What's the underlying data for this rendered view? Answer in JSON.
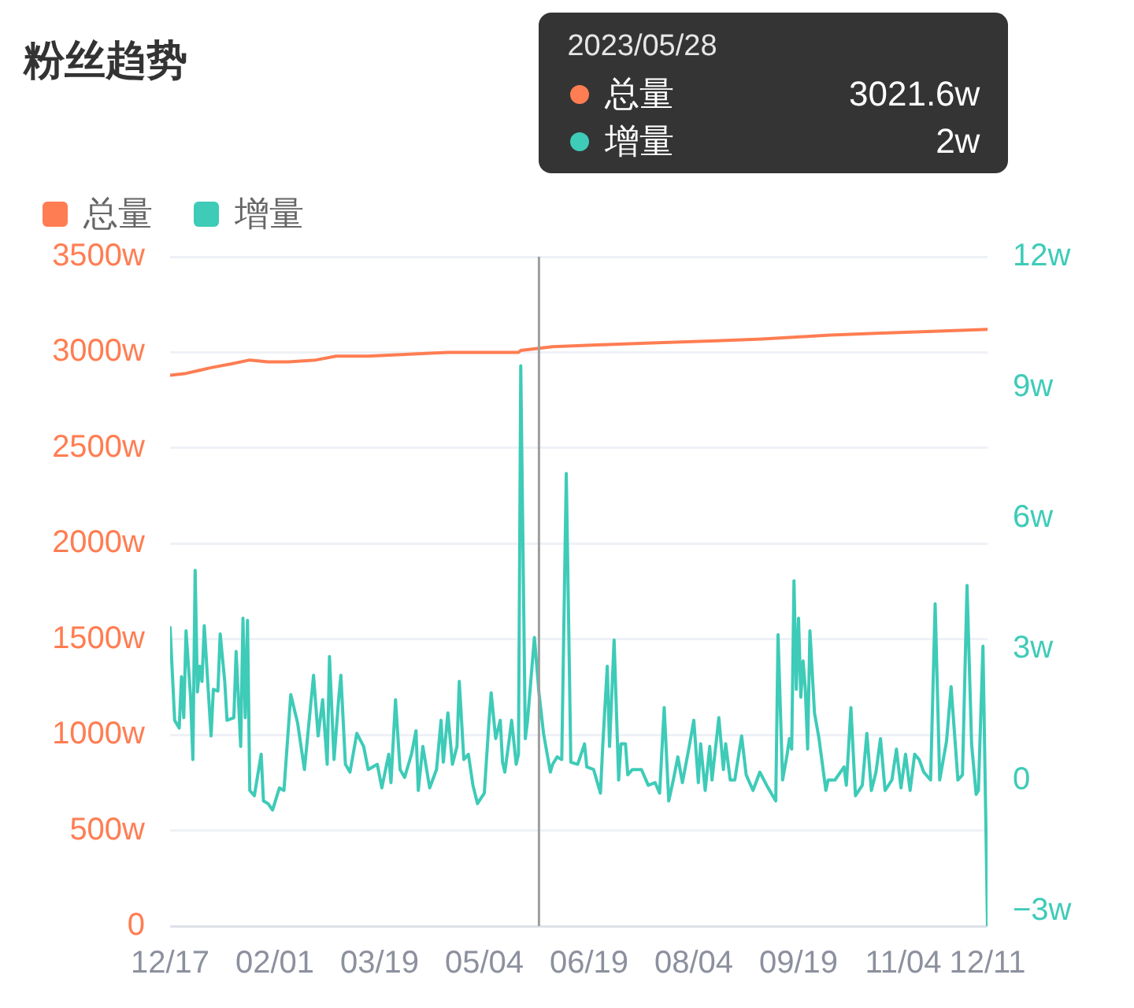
{
  "chart_data": {
    "type": "line",
    "title": "粉丝趋势",
    "xlim": [
      "2022-12-17",
      "2023-12-11"
    ],
    "xticks": [
      {
        "value": "2022-12-17",
        "label": "12/17"
      },
      {
        "value": "2023-02-01",
        "label": "02/01"
      },
      {
        "value": "2023-03-19",
        "label": "03/19"
      },
      {
        "value": "2023-05-04",
        "label": "05/04"
      },
      {
        "value": "2023-06-19",
        "label": "06/19"
      },
      {
        "value": "2023-08-04",
        "label": "08/04"
      },
      {
        "value": "2023-09-19",
        "label": "09/19"
      },
      {
        "value": "2023-11-04",
        "label": "11/04"
      },
      {
        "value": "2023-12-11",
        "label": "12/11"
      }
    ],
    "ylim": [
      0,
      3500
    ],
    "yticks": [
      0,
      {
        "value": 500,
        "label": "500w"
      },
      {
        "value": 1000,
        "label": "1000w"
      },
      {
        "value": 1500,
        "label": "1500w"
      },
      {
        "value": 2000,
        "label": "2000w"
      },
      {
        "value": 2500,
        "label": "2500w"
      },
      {
        "value": 3000,
        "label": "3000w"
      },
      {
        "value": 3500,
        "label": "3500w"
      }
    ],
    "y2lim": [
      -3.35,
      12
    ],
    "y2ticks": [
      {
        "value": -3,
        "label": "−3w"
      },
      0,
      {
        "value": 3,
        "label": "3w"
      },
      {
        "value": 6,
        "label": "6w"
      },
      {
        "value": 9,
        "label": "9w"
      },
      {
        "value": 12,
        "label": "12w"
      }
    ],
    "series": [
      {
        "name": "总量",
        "color": "#ff7d52",
        "x": [
          "2022-12-17",
          "2022-12-24",
          "2023-01-04",
          "2023-01-13",
          "2023-01-21",
          "2023-01-29",
          "2023-02-07",
          "2023-02-19",
          "2023-02-28",
          "2023-03-14",
          "2023-04-01",
          "2023-04-18",
          "2023-05-06",
          "2023-05-19",
          "2023-05-20",
          "2023-05-28",
          "2023-06-03",
          "2023-06-25",
          "2023-07-19",
          "2023-08-14",
          "2023-09-03",
          "2023-09-18",
          "2023-10-03",
          "2023-10-23",
          "2023-11-17",
          "2023-12-11"
        ],
        "values": [
          2880,
          2890,
          2920,
          2940,
          2960,
          2950,
          2950,
          2960,
          2980,
          2980,
          2990,
          3000,
          3000,
          3000,
          3010,
          3021.6,
          3030,
          3040,
          3050,
          3060,
          3070,
          3080,
          3090,
          3100,
          3110,
          3120
        ]
      },
      {
        "name": "增量",
        "color": "#3ecbb8",
        "axis": "y2",
        "x": [
          "2022-12-17",
          "2022-12-19",
          "2022-12-21",
          "2022-12-22",
          "2022-12-23",
          "2022-12-24",
          "2022-12-26",
          "2022-12-27",
          "2022-12-28",
          "2022-12-29",
          "2022-12-30",
          "2022-12-31",
          "2023-01-01",
          "2023-01-04",
          "2023-01-05",
          "2023-01-07",
          "2023-01-08",
          "2023-01-10",
          "2023-01-11",
          "2023-01-14",
          "2023-01-15",
          "2023-01-17",
          "2023-01-18",
          "2023-01-19",
          "2023-01-20",
          "2023-01-21",
          "2023-01-23",
          "2023-01-26",
          "2023-01-27",
          "2023-01-29",
          "2023-01-31",
          "2023-02-03",
          "2023-02-05",
          "2023-02-08",
          "2023-02-11",
          "2023-02-14",
          "2023-02-18",
          "2023-02-20",
          "2023-02-22",
          "2023-02-24",
          "2023-02-25",
          "2023-02-27",
          "2023-03-01",
          "2023-03-02",
          "2023-03-04",
          "2023-03-06",
          "2023-03-09",
          "2023-03-12",
          "2023-03-14",
          "2023-03-18",
          "2023-03-20",
          "2023-03-23",
          "2023-03-24",
          "2023-03-26",
          "2023-03-28",
          "2023-03-30",
          "2023-04-02",
          "2023-04-04",
          "2023-04-05",
          "2023-04-07",
          "2023-04-10",
          "2023-04-13",
          "2023-04-15",
          "2023-04-16",
          "2023-04-18",
          "2023-04-20",
          "2023-04-22",
          "2023-04-23",
          "2023-04-25",
          "2023-04-27",
          "2023-04-29",
          "2023-05-01",
          "2023-05-04",
          "2023-05-06",
          "2023-05-07",
          "2023-05-09",
          "2023-05-11",
          "2023-05-12",
          "2023-05-13",
          "2023-05-15",
          "2023-05-16",
          "2023-05-18",
          "2023-05-19",
          "2023-05-20",
          "2023-05-22",
          "2023-05-23",
          "2023-05-26",
          "2023-05-28",
          "2023-05-30",
          "2023-06-02",
          "2023-06-03",
          "2023-06-05",
          "2023-06-07",
          "2023-06-09",
          "2023-06-11",
          "2023-06-14",
          "2023-06-17",
          "2023-06-18",
          "2023-06-21",
          "2023-06-24",
          "2023-06-25",
          "2023-06-27",
          "2023-06-28",
          "2023-06-30",
          "2023-07-02",
          "2023-07-03",
          "2023-07-05",
          "2023-07-06",
          "2023-07-08",
          "2023-07-12",
          "2023-07-15",
          "2023-07-18",
          "2023-07-20",
          "2023-07-22",
          "2023-07-24",
          "2023-07-26",
          "2023-07-28",
          "2023-07-30",
          "2023-08-02",
          "2023-08-04",
          "2023-08-06",
          "2023-08-07",
          "2023-08-09",
          "2023-08-11",
          "2023-08-12",
          "2023-08-15",
          "2023-08-17",
          "2023-08-18",
          "2023-08-20",
          "2023-08-22",
          "2023-08-25",
          "2023-08-27",
          "2023-08-30",
          "2023-09-02",
          "2023-09-05",
          "2023-09-09",
          "2023-09-10",
          "2023-09-12",
          "2023-09-14",
          "2023-09-15",
          "2023-09-16",
          "2023-09-17",
          "2023-09-18",
          "2023-09-19",
          "2023-09-20",
          "2023-09-21",
          "2023-09-22",
          "2023-09-23",
          "2023-09-24",
          "2023-09-26",
          "2023-09-28",
          "2023-10-01",
          "2023-10-02",
          "2023-10-05",
          "2023-10-09",
          "2023-10-10",
          "2023-10-12",
          "2023-10-14",
          "2023-10-17",
          "2023-10-19",
          "2023-10-21",
          "2023-10-23",
          "2023-10-25",
          "2023-10-27",
          "2023-10-30",
          "2023-11-01",
          "2023-11-03",
          "2023-11-05",
          "2023-11-07",
          "2023-11-09",
          "2023-11-11",
          "2023-11-13",
          "2023-11-16",
          "2023-11-18",
          "2023-11-20",
          "2023-11-23",
          "2023-11-25",
          "2023-11-28",
          "2023-11-30",
          "2023-12-02",
          "2023-12-04",
          "2023-12-06",
          "2023-12-07",
          "2023-12-09",
          "2023-12-11"
        ],
        "values": [
          3.5,
          1.37,
          1.19,
          2.37,
          1.43,
          3.42,
          1.9,
          0.47,
          4.81,
          2.02,
          2.61,
          2.26,
          3.54,
          1.01,
          2.08,
          2.04,
          3.35,
          2.26,
          1.37,
          1.43,
          2.95,
          0.77,
          3.71,
          1.43,
          3.66,
          -0.24,
          -0.36,
          0.59,
          -0.48,
          -0.54,
          -0.69,
          -0.18,
          -0.24,
          1.96,
          1.31,
          0.24,
          2.4,
          1.01,
          1.84,
          0.36,
          2.83,
          0.47,
          1.84,
          2.4,
          0.36,
          0.18,
          1.07,
          0.77,
          0.24,
          0.36,
          -0.18,
          0.59,
          -0.06,
          1.84,
          0.24,
          0.06,
          0.59,
          1.13,
          -0.24,
          0.77,
          -0.18,
          0.24,
          1.37,
          0.41,
          1.54,
          0.36,
          0.77,
          2.26,
          0.47,
          0.59,
          -0.12,
          -0.54,
          -0.3,
          1.31,
          2,
          0.95,
          1.37,
          0.41,
          0.18,
          0.95,
          1.37,
          0.36,
          0.59,
          9.5,
          0.95,
          1.37,
          3.27,
          2,
          1.07,
          0.18,
          0.36,
          0.53,
          0.47,
          7.03,
          0.41,
          0.36,
          0.83,
          0.3,
          0.24,
          -0.3,
          0.77,
          2.61,
          0.77,
          3.21,
          0,
          0.83,
          0.83,
          0.12,
          0.24,
          0.24,
          -0.12,
          -0.06,
          -0.3,
          1.66,
          -0.48,
          0,
          0.53,
          -0.06,
          0.77,
          1.37,
          -0.06,
          0.83,
          -0.24,
          0.77,
          0,
          1.43,
          0.24,
          0.83,
          0,
          0,
          1.01,
          0.12,
          -0.24,
          0.18,
          -0.12,
          -0.48,
          3.33,
          0,
          0.59,
          0.95,
          0.71,
          4.57,
          2.08,
          3.71,
          1.9,
          2.73,
          2.08,
          0.71,
          3.42,
          1.54,
          0.95,
          -0.24,
          0,
          0,
          0.3,
          -0.12,
          1.66,
          -0.36,
          -0.12,
          1.07,
          -0.24,
          0.18,
          0.95,
          -0.24,
          0,
          0.71,
          -0.18,
          0.59,
          -0.24,
          0.59,
          0.47,
          0.18,
          0,
          4.04,
          0,
          0.89,
          2.14,
          0,
          0.12,
          4.46,
          0.83,
          -0.33,
          -0.24,
          3.07,
          -3.35
        ]
      }
    ],
    "legend": "top left",
    "grid": "y",
    "marker": "none",
    "ref_lines": [
      {
        "axis": "x",
        "value": "2023-05-28",
        "color": "#9e9e9e"
      }
    ],
    "annotations": [
      "2023/05/28",
      "3021.6w",
      "2w"
    ]
  }
}
